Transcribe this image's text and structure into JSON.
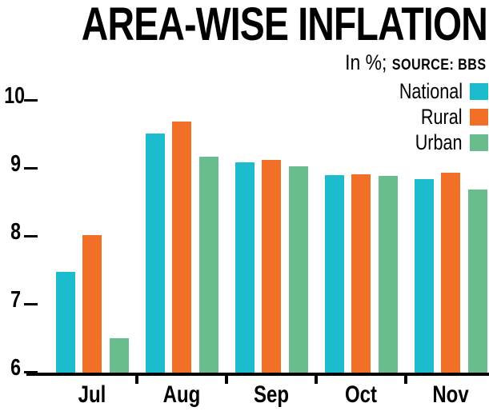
{
  "title": "AREA-WISE INFLATION",
  "subtitle": {
    "prefix": "In %; ",
    "source": "SOURCE: BBS"
  },
  "legend": [
    {
      "label": "National",
      "color": "#1CBCCE"
    },
    {
      "label": "Rural",
      "color": "#F26F28"
    },
    {
      "label": "Urban",
      "color": "#69BD8D"
    }
  ],
  "chart_data": {
    "type": "bar",
    "title": "AREA-WISE INFLATION",
    "subtitle": "In %; SOURCE: BBS",
    "categories": [
      "Jul",
      "Aug",
      "Sep",
      "Oct",
      "Nov"
    ],
    "series": [
      {
        "name": "National",
        "color": "#1CBCCE",
        "values": [
          7.48,
          9.52,
          9.1,
          8.91,
          8.85
        ]
      },
      {
        "name": "Rural",
        "color": "#F26F28",
        "values": [
          8.02,
          9.7,
          9.13,
          8.92,
          8.94
        ]
      },
      {
        "name": "Urban",
        "color": "#69BD8D",
        "values": [
          6.51,
          9.18,
          9.03,
          8.9,
          8.7
        ]
      }
    ],
    "xlabel": "",
    "ylabel": "",
    "ylim": [
      6,
      10
    ],
    "yticks": [
      10,
      9,
      8,
      7,
      6
    ],
    "grid": false,
    "legend_position": "top-right",
    "axis_color": "#000000",
    "text_color": "#000000",
    "background_color": "#FFFFFF"
  }
}
